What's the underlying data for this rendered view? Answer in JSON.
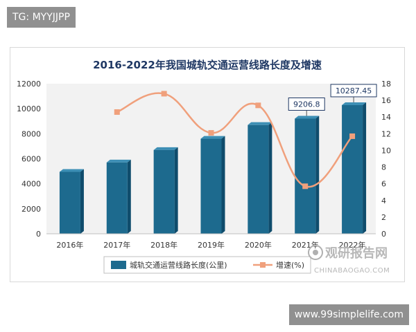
{
  "header_tag": "TG: MYYJJPP",
  "footer_tag": "www.99simplelife.com",
  "watermark": {
    "cn": "观研报告网",
    "en": "CHINABAOGAO.COM"
  },
  "chart_data": {
    "type": "bar",
    "title": "2016-2022年我国城轨交通运营线路长度及增速",
    "categories": [
      "2016年",
      "2017年",
      "2018年",
      "2019年",
      "2020年",
      "2021年",
      "2022年"
    ],
    "series": [
      {
        "name": "城轨交通运营线路长度(公里)",
        "type": "bar",
        "axis": "left",
        "color": "#1d6a8e",
        "values": [
          4950,
          5700,
          6700,
          7600,
          8700,
          9206.8,
          10287.45
        ]
      },
      {
        "name": "增速(%)",
        "type": "line",
        "axis": "right",
        "color": "#f0a07c",
        "values": [
          null,
          14.6,
          16.8,
          12.1,
          15.4,
          5.7,
          11.7
        ]
      }
    ],
    "data_labels": [
      "9206.8",
      "10287.45"
    ],
    "y_left": {
      "ticks": [
        "0",
        "2000",
        "4000",
        "6000",
        "8000",
        "10000",
        "12000"
      ],
      "range": [
        0,
        12000
      ]
    },
    "y_right": {
      "ticks": [
        "0",
        "2",
        "4",
        "6",
        "8",
        "10",
        "12",
        "14",
        "16",
        "18"
      ],
      "range": [
        0,
        18
      ]
    },
    "legend_position": "bottom",
    "grid": false
  }
}
